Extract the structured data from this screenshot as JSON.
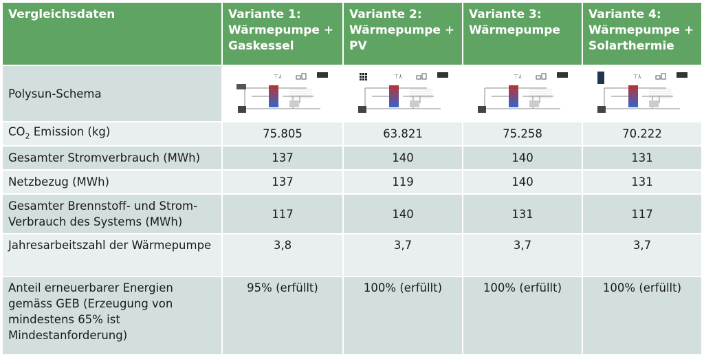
{
  "header": {
    "col0": "Vergleichsdaten",
    "variants": [
      "Variante 1: Wärmepumpe + Gaskessel",
      "Variante 2: Wärmepumpe + PV",
      "Variante 3: Wärmepumpe",
      "Variante 4: Wärmepumpe + Solarthermie"
    ]
  },
  "rows": {
    "schema": {
      "label": "Polysun-Schema",
      "images": [
        "schema-wp-gaskessel",
        "schema-wp-pv",
        "schema-wp",
        "schema-wp-solarthermie"
      ]
    },
    "co2": {
      "label_prefix": "CO",
      "label_sub": "2",
      "label_suffix": " Emission (kg)",
      "values": [
        "75.805",
        "63.821",
        "75.258",
        "70.222"
      ]
    },
    "strom": {
      "label": "Gesamter Stromverbrauch (MWh)",
      "values": [
        "137",
        "140",
        "140",
        "131"
      ]
    },
    "netz": {
      "label": "Netzbezug (MWh)",
      "values": [
        "137",
        "119",
        "140",
        "131"
      ]
    },
    "brennstoff": {
      "label": "Gesamter Brennstoff- und Strom-Verbrauch des Systems (MWh)",
      "values": [
        "117",
        "140",
        "131",
        "117"
      ]
    },
    "jaz": {
      "label": "Jahresarbeitszahl der Wärmepumpe",
      "values": [
        "3,8",
        "3,7",
        "3,7",
        "3,7"
      ]
    },
    "anteil": {
      "label": "Anteil erneuerbarer Energien gemäss GEB (Erzeugung von mindestens 65% ist Mindestanforderung)",
      "values": [
        "95% (erfüllt)",
        "100% (erfüllt)",
        "100% (erfüllt)",
        "100% (erfüllt)"
      ]
    }
  },
  "colors": {
    "header": "#5fa463",
    "row_dark": "#d3dfdf",
    "row_light": "#e9efef"
  }
}
